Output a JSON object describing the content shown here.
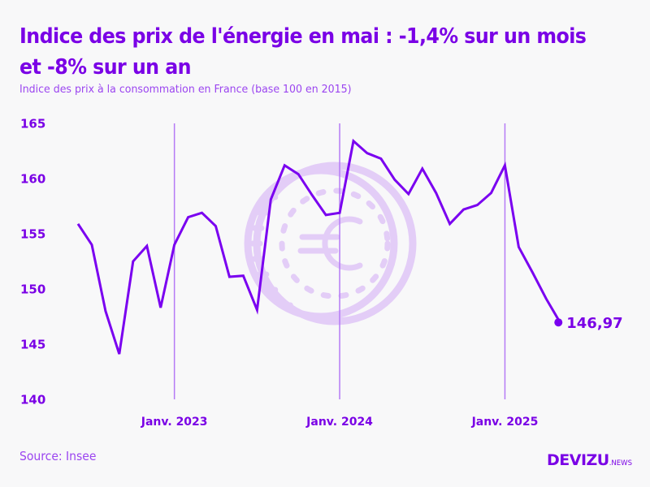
{
  "header": {
    "title": "Indice des prix de l'énergie en mai : -1,4% sur un mois et -8% sur un an",
    "subtitle": "Indice des prix à la consommation en France (base 100 en 2015)"
  },
  "footer": {
    "source": "Source: Insee",
    "logo_main": "DEVIZU",
    "logo_suffix": ".NEWS"
  },
  "colors": {
    "accent": "#7a00e6",
    "line": "#7a00f0",
    "reference_line": "#b57af5",
    "watermark": "#e3cdf7",
    "background": "#f8f8f9"
  },
  "watermark_icon": "euro-coin-icon",
  "chart_data": {
    "type": "line",
    "title": "Indice des prix de l'énergie en mai : -1,4% sur un mois et -8% sur un an",
    "subtitle": "Indice des prix à la consommation en France (base 100 en 2015)",
    "xlabel": "",
    "ylabel": "",
    "ylim": [
      140,
      165
    ],
    "yticks": [
      165,
      160,
      155,
      150,
      145,
      140
    ],
    "ytick_labels": [
      "165",
      "160",
      "155",
      "150",
      "145",
      "140"
    ],
    "xticks": [
      {
        "index": 7,
        "label": "Janv. 2023"
      },
      {
        "index": 19,
        "label": "Janv. 2024"
      },
      {
        "index": 31,
        "label": "Janv. 2025"
      }
    ],
    "grid": false,
    "legend": "none",
    "x": [
      "2022-06",
      "2022-07",
      "2022-08",
      "2022-09",
      "2022-10",
      "2022-11",
      "2022-12",
      "2023-01",
      "2023-02",
      "2023-03",
      "2023-04",
      "2023-05",
      "2023-06",
      "2023-07",
      "2023-08",
      "2023-09",
      "2023-10",
      "2023-11",
      "2023-12",
      "2024-01",
      "2024-02",
      "2024-03",
      "2024-04",
      "2024-05",
      "2024-06",
      "2024-07",
      "2024-08",
      "2024-09",
      "2024-10",
      "2024-11",
      "2024-12",
      "2025-01",
      "2025-02",
      "2025-03",
      "2025-04",
      "2025-05"
    ],
    "series": [
      {
        "name": "Indice des prix de l'énergie",
        "values": [
          155.9,
          154.0,
          148.0,
          144.1,
          152.5,
          153.9,
          148.3,
          154.0,
          156.5,
          156.9,
          155.7,
          151.1,
          151.2,
          148.1,
          158.1,
          161.2,
          160.4,
          158.5,
          156.7,
          156.9,
          163.4,
          162.3,
          161.8,
          159.9,
          158.6,
          160.9,
          158.7,
          155.9,
          157.2,
          157.6,
          158.7,
          161.2,
          153.8,
          151.5,
          149.1,
          146.97
        ]
      }
    ],
    "annotations": [
      {
        "index": 35,
        "label": "146,97"
      }
    ]
  }
}
